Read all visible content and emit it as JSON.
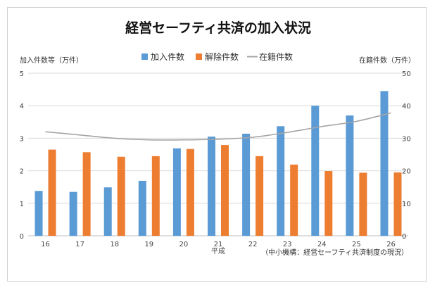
{
  "chart_data": {
    "type": "bar",
    "title": "経営セーフティ共済の加入状況",
    "left_axis_label": "加入件数等（万件）",
    "right_axis_label": "在籍件数（万件）",
    "xlabel": "平成",
    "source_note": "（中小機構：経営セーフティ共済制度の現況）",
    "categories": [
      "16",
      "17",
      "18",
      "19",
      "20",
      "21",
      "22",
      "23",
      "24",
      "25",
      "26"
    ],
    "left_ylim": [
      0,
      5
    ],
    "left_ticks": [
      "0",
      "1",
      "2",
      "3",
      "4",
      "5"
    ],
    "right_ylim": [
      0,
      50
    ],
    "right_ticks": [
      "0",
      "10",
      "20",
      "30",
      "40",
      "50"
    ],
    "series": [
      {
        "name": "加入件数",
        "type": "bar",
        "axis": "left",
        "color": "#5b9bd5",
        "values": [
          1.38,
          1.35,
          1.49,
          1.69,
          2.69,
          3.05,
          3.14,
          3.37,
          4.0,
          3.7,
          4.45
        ]
      },
      {
        "name": "解除件数",
        "type": "bar",
        "axis": "left",
        "color": "#ed7d31",
        "values": [
          2.65,
          2.57,
          2.43,
          2.45,
          2.67,
          2.79,
          2.45,
          2.19,
          1.99,
          1.94,
          1.95
        ]
      },
      {
        "name": "在籍件数",
        "type": "line",
        "axis": "right",
        "color": "#a5a5a5",
        "values": [
          32.0,
          31.0,
          30.0,
          29.5,
          29.5,
          29.7,
          30.3,
          31.8,
          33.6,
          35.2,
          37.8
        ]
      }
    ],
    "legend_position": "top-center",
    "grid": true
  }
}
